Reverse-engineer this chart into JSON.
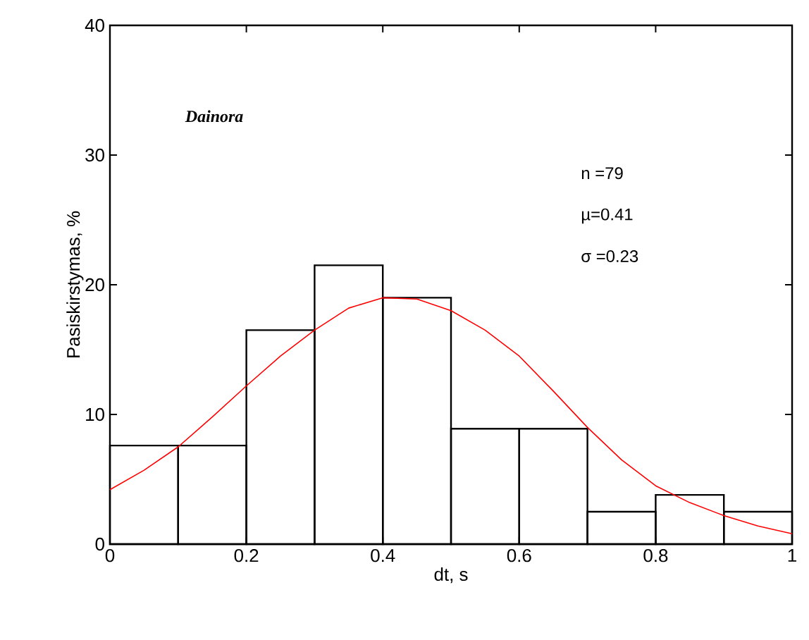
{
  "chart_data": {
    "type": "histogram",
    "xlabel": "dt, s",
    "ylabel": "Pasiskirstymas, %",
    "annotations": [
      "Dainora",
      "n =79",
      "µ=0.41",
      "σ =0.23"
    ],
    "bins": [
      0,
      0.1,
      0.2,
      0.3,
      0.4,
      0.5,
      0.6,
      0.7,
      0.8,
      0.9,
      1.0
    ],
    "values": [
      7.6,
      7.6,
      16.5,
      21.5,
      19.0,
      8.9,
      8.9,
      2.5,
      3.8,
      2.5
    ],
    "color": "#000000",
    "series": [
      {
        "type": "line",
        "color": "#ff0000",
        "x": [
          0,
          0.05,
          0.1,
          0.15,
          0.2,
          0.25,
          0.3,
          0.35,
          0.4,
          0.45,
          0.5,
          0.55,
          0.6,
          0.65,
          0.7,
          0.75,
          0.8,
          0.85,
          0.9,
          0.95,
          1.0
        ],
        "values": [
          4.2,
          5.7,
          7.5,
          9.8,
          12.2,
          14.5,
          16.5,
          18.2,
          19.0,
          18.9,
          18.0,
          16.5,
          14.5,
          11.8,
          9.0,
          6.5,
          4.5,
          3.2,
          2.2,
          1.4,
          0.8
        ]
      }
    ],
    "xlim": [
      0,
      1
    ],
    "ylim": [
      0,
      40
    ],
    "xticks": [
      0,
      0.2,
      0.4,
      0.6,
      0.8,
      1
    ],
    "yticks": [
      0,
      10,
      20,
      30,
      40
    ],
    "grid": false
  }
}
